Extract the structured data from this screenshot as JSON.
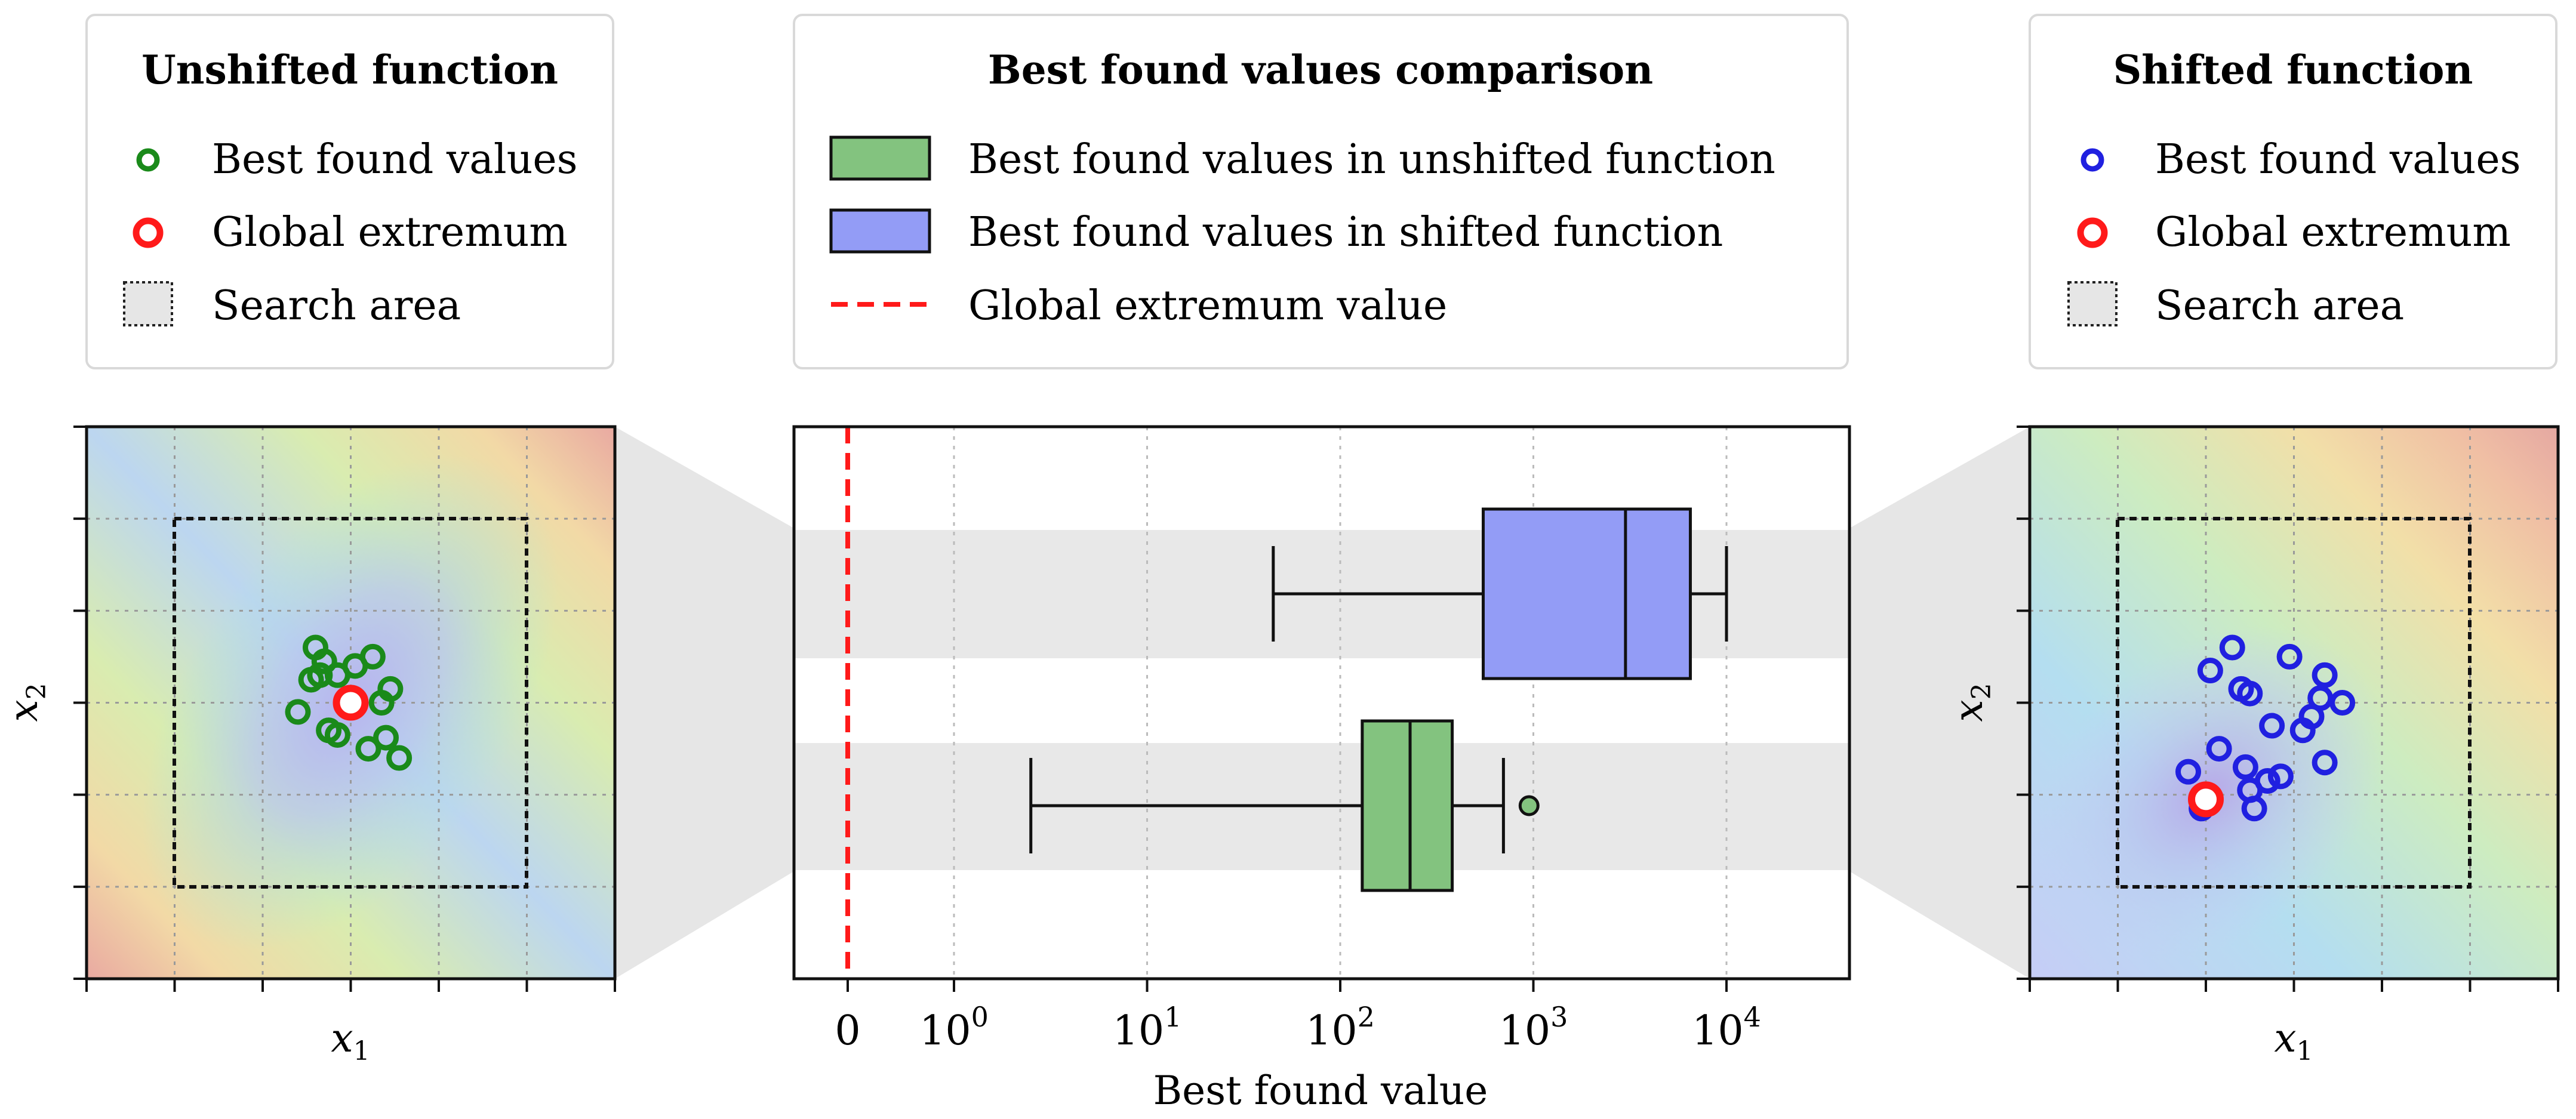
{
  "colors": {
    "unshifted_points": "#1a8a1a",
    "shifted_points": "#2020e0",
    "global_extremum": "#ff1a1a",
    "unshifted_box": "#83c37f",
    "shifted_box": "#939cf6",
    "extremum_line": "#ff1a1a",
    "band": "#e8e8e8"
  },
  "legends": {
    "left": {
      "title": "Unshifted function",
      "items": [
        "Best found values",
        "Global extremum",
        "Search area"
      ]
    },
    "middle": {
      "title": "Best found values comparison",
      "items": [
        "Best found values in unshifted function",
        "Best found values in shifted function",
        "Global extremum value"
      ]
    },
    "right": {
      "title": "Shifted function",
      "items": [
        "Best found values",
        "Global extremum",
        "Search area"
      ]
    }
  },
  "left_panel": {
    "xlabel": "x",
    "xlabel_sub": "1",
    "ylabel": "x",
    "ylabel_sub": "2"
  },
  "right_panel": {
    "xlabel": "x",
    "xlabel_sub": "1",
    "ylabel": "x",
    "ylabel_sub": "2"
  },
  "chart_data": [
    {
      "type": "scatter",
      "title": "Unshifted function",
      "xlim": [
        -3,
        3
      ],
      "ylim": [
        -3,
        3
      ],
      "search_area": {
        "x": [
          -2,
          2
        ],
        "y": [
          -2,
          2
        ]
      },
      "global_extremum": [
        0,
        0
      ],
      "points": [
        [
          -0.4,
          0.6
        ],
        [
          -0.3,
          0.45
        ],
        [
          -0.15,
          0.3
        ],
        [
          0.05,
          0.4
        ],
        [
          0.25,
          0.5
        ],
        [
          -0.45,
          0.25
        ],
        [
          -0.35,
          0.3
        ],
        [
          0.45,
          0.15
        ],
        [
          0.35,
          0.0
        ],
        [
          -0.6,
          -0.1
        ],
        [
          -0.25,
          -0.3
        ],
        [
          -0.15,
          -0.35
        ],
        [
          0.2,
          -0.5
        ],
        [
          0.4,
          -0.38
        ],
        [
          0.55,
          -0.6
        ]
      ]
    },
    {
      "type": "box",
      "orientation": "horizontal",
      "xscale": "symlog",
      "xlabel": "Best found value",
      "xticks": [
        {
          "label": "0",
          "value": 0
        },
        {
          "label": "10",
          "exp": "0",
          "value": 1
        },
        {
          "label": "10",
          "exp": "1",
          "value": 10
        },
        {
          "label": "10",
          "exp": "2",
          "value": 100
        },
        {
          "label": "10",
          "exp": "3",
          "value": 1000
        },
        {
          "label": "10",
          "exp": "4",
          "value": 10000
        }
      ],
      "global_extremum_value": 0,
      "series": [
        {
          "name": "Best found values in shifted function",
          "whisker_low": 45,
          "q1": 550,
          "median": 3000,
          "q3": 6500,
          "whisker_high": 10000,
          "outliers": []
        },
        {
          "name": "Best found values in unshifted function",
          "whisker_low": 2.5,
          "q1": 130,
          "median": 230,
          "q3": 380,
          "whisker_high": 700,
          "outliers": [
            950
          ]
        }
      ]
    },
    {
      "type": "scatter",
      "title": "Shifted function",
      "xlim": [
        -3,
        3
      ],
      "ylim": [
        -3,
        3
      ],
      "search_area": {
        "x": [
          -2,
          2
        ],
        "y": [
          -2,
          2
        ]
      },
      "global_extremum": [
        -1.0,
        -1.05
      ],
      "points": [
        [
          -0.7,
          0.6
        ],
        [
          -0.95,
          0.35
        ],
        [
          -0.6,
          0.15
        ],
        [
          -0.5,
          0.1
        ],
        [
          -0.05,
          0.5
        ],
        [
          0.35,
          0.3
        ],
        [
          0.3,
          0.05
        ],
        [
          0.55,
          0.0
        ],
        [
          0.2,
          -0.15
        ],
        [
          0.1,
          -0.3
        ],
        [
          -0.25,
          -0.25
        ],
        [
          -0.85,
          -0.5
        ],
        [
          -0.5,
          -0.95
        ],
        [
          -0.55,
          -0.7
        ],
        [
          -1.2,
          -0.75
        ],
        [
          0.35,
          -0.65
        ],
        [
          -0.3,
          -0.85
        ],
        [
          -0.15,
          -0.8
        ],
        [
          -0.45,
          -1.15
        ],
        [
          -1.05,
          -1.15
        ]
      ]
    }
  ]
}
